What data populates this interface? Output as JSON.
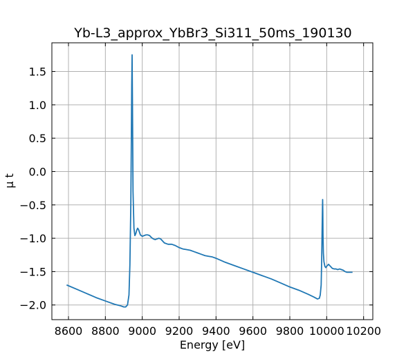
{
  "chart_data": {
    "type": "line",
    "title": "Yb-L3_approx_YbBr3_Si311_50ms_190130",
    "xlabel": "Energy [eV]",
    "ylabel": "μ t",
    "xlim": [
      8510,
      10250
    ],
    "ylim": [
      -2.22,
      1.93
    ],
    "xticks": [
      8600,
      8800,
      9000,
      9200,
      9400,
      9600,
      9800,
      10000,
      10200
    ],
    "yticks": [
      -2.0,
      -1.5,
      -1.0,
      -0.5,
      0.0,
      0.5,
      1.0,
      1.5
    ],
    "xtick_labels": [
      "8600",
      "8800",
      "9000",
      "9200",
      "9400",
      "9600",
      "9800",
      "10000",
      "10200"
    ],
    "ytick_labels": [
      "−2.0",
      "−1.5",
      "−1.0",
      "−0.5",
      "0.0",
      "0.5",
      "1.0",
      "1.5"
    ],
    "grid": true,
    "line_color": "#1f77b4",
    "series": [
      {
        "x": [
          8590,
          8650,
          8700,
          8750,
          8800,
          8850,
          8880,
          8900,
          8910,
          8920,
          8928,
          8933,
          8938,
          8941,
          8943,
          8945,
          8947,
          8950,
          8955,
          8960,
          8965,
          8970,
          8975,
          8980,
          8985,
          8990,
          9000,
          9010,
          9020,
          9030,
          9040,
          9050,
          9060,
          9070,
          9080,
          9090,
          9100,
          9110,
          9120,
          9140,
          9160,
          9180,
          9200,
          9220,
          9240,
          9260,
          9280,
          9300,
          9320,
          9340,
          9360,
          9380,
          9400,
          9450,
          9500,
          9550,
          9600,
          9650,
          9700,
          9750,
          9800,
          9850,
          9900,
          9930,
          9950,
          9960,
          9965,
          9970,
          9973,
          9975,
          9977,
          9978,
          9979,
          9980,
          9982,
          9985,
          9990,
          9995,
          10000,
          10010,
          10020,
          10030,
          10040,
          10050,
          10060,
          10070,
          10080,
          10090,
          10100,
          10110,
          10120,
          10130,
          10140
        ],
        "y": [
          -1.7,
          -1.77,
          -1.83,
          -1.89,
          -1.94,
          -1.99,
          -2.01,
          -2.03,
          -2.03,
          -2.0,
          -1.85,
          -1.4,
          -0.5,
          0.5,
          1.3,
          1.75,
          1.0,
          -0.3,
          -0.85,
          -0.96,
          -0.93,
          -0.88,
          -0.85,
          -0.87,
          -0.91,
          -0.95,
          -0.97,
          -0.96,
          -0.95,
          -0.95,
          -0.96,
          -0.99,
          -1.01,
          -1.02,
          -1.01,
          -1.0,
          -1.01,
          -1.04,
          -1.07,
          -1.09,
          -1.09,
          -1.11,
          -1.14,
          -1.16,
          -1.17,
          -1.18,
          -1.2,
          -1.22,
          -1.24,
          -1.26,
          -1.27,
          -1.28,
          -1.3,
          -1.36,
          -1.41,
          -1.46,
          -1.51,
          -1.56,
          -1.61,
          -1.67,
          -1.73,
          -1.78,
          -1.84,
          -1.88,
          -1.91,
          -1.9,
          -1.85,
          -1.7,
          -1.3,
          -0.9,
          -0.55,
          -0.42,
          -0.6,
          -0.95,
          -1.22,
          -1.35,
          -1.42,
          -1.44,
          -1.42,
          -1.39,
          -1.42,
          -1.45,
          -1.46,
          -1.46,
          -1.47,
          -1.46,
          -1.47,
          -1.48,
          -1.5,
          -1.51,
          -1.51,
          -1.51,
          -1.51
        ]
      }
    ]
  }
}
